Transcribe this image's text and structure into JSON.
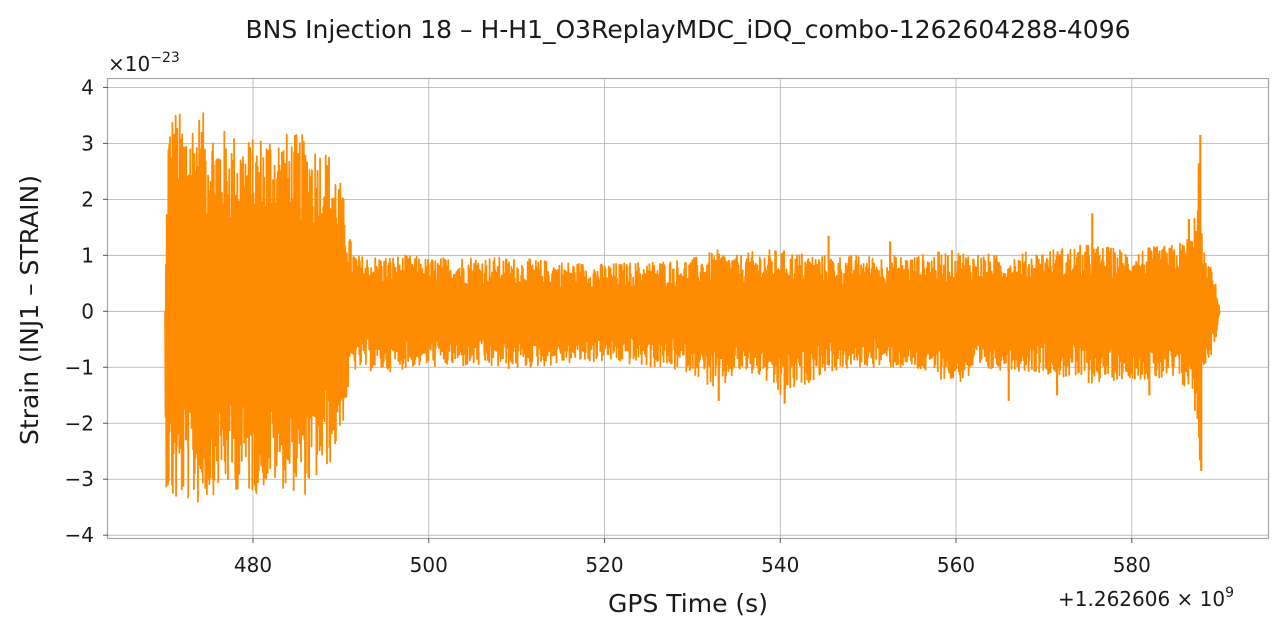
{
  "chart_data": {
    "type": "line",
    "title": "BNS Injection 18 – H-H1_O3ReplayMDC_iDQ_combo-1262604288-4096",
    "xlabel": "GPS Time (s)",
    "ylabel": "Strain (INJ1 – STRAIN)",
    "y_scale_base": "×10",
    "y_scale_exp": "−23",
    "x_offset_prefix": "+1.262606 × 10",
    "x_offset_exp": "9",
    "x_offset": 1262606000,
    "y_multiplier": 1e-23,
    "xlim": [
      463.5,
      595.5
    ],
    "ylim": [
      -4.05,
      4.15
    ],
    "x_ticks": [
      480,
      500,
      520,
      540,
      560,
      580
    ],
    "x_tick_labels": [
      "480",
      "500",
      "520",
      "540",
      "560",
      "580"
    ],
    "y_ticks": [
      4,
      3,
      2,
      1,
      0,
      -1,
      -2,
      -3,
      -4
    ],
    "y_tick_labels": [
      "4",
      "3",
      "2",
      "1",
      "0",
      "−1",
      "−2",
      "−3",
      "−4"
    ],
    "grid": true,
    "series": [
      {
        "color": "#ff8c00",
        "envelope_x": [
          470,
          470.3,
          471,
          472,
          474,
          476,
          478,
          480,
          482,
          484,
          486,
          488,
          489,
          490,
          490.6,
          491.2,
          492,
          495,
          498,
          500,
          505,
          510,
          515,
          520,
          525,
          530,
          533,
          535,
          538,
          540,
          545,
          550,
          555,
          560,
          565,
          570,
          575,
          580,
          585,
          587,
          587.7,
          588,
          588.5,
          589,
          589.7,
          590
        ],
        "envelope_upper": [
          0.0,
          3.4,
          3.7,
          3.5,
          3.6,
          3.3,
          3.2,
          3.1,
          3.3,
          3.2,
          3.15,
          3.0,
          2.8,
          2.3,
          1.8,
          1.2,
          1.0,
          1.0,
          1.0,
          0.95,
          1.0,
          0.95,
          0.9,
          0.85,
          0.9,
          0.95,
          1.1,
          1.0,
          1.1,
          1.1,
          1.0,
          1.0,
          1.0,
          1.1,
          1.0,
          1.1,
          1.2,
          1.1,
          1.2,
          1.4,
          3.2,
          1.2,
          0.9,
          0.8,
          0.4,
          0.0
        ],
        "envelope_lower": [
          -3.0,
          -3.3,
          -3.6,
          -3.4,
          -3.5,
          -3.2,
          -3.2,
          -3.3,
          -3.1,
          -3.2,
          -3.3,
          -2.9,
          -2.7,
          -2.2,
          -1.7,
          -1.1,
          -1.05,
          -1.1,
          -1.0,
          -1.0,
          -1.0,
          -1.05,
          -0.95,
          -0.9,
          -1.0,
          -1.1,
          -1.5,
          -1.1,
          -1.2,
          -1.6,
          -1.1,
          -1.0,
          -1.05,
          -1.3,
          -1.05,
          -1.1,
          -1.3,
          -1.2,
          -1.3,
          -1.5,
          -2.9,
          -1.2,
          -0.9,
          -0.8,
          -0.4,
          0.0
        ],
        "spikes": [
          {
            "x": 533.0,
            "y": -1.6
          },
          {
            "x": 540.5,
            "y": -1.65
          },
          {
            "x": 545.5,
            "y": 1.35
          },
          {
            "x": 552.5,
            "y": 1.25
          },
          {
            "x": 566.0,
            "y": -1.6
          },
          {
            "x": 571.5,
            "y": -1.5
          },
          {
            "x": 575.5,
            "y": 1.75
          },
          {
            "x": 582.0,
            "y": -1.5
          },
          {
            "x": 586.5,
            "y": 1.65
          },
          {
            "x": 587.8,
            "y": 3.15
          },
          {
            "x": 587.9,
            "y": -2.85
          }
        ]
      }
    ]
  }
}
